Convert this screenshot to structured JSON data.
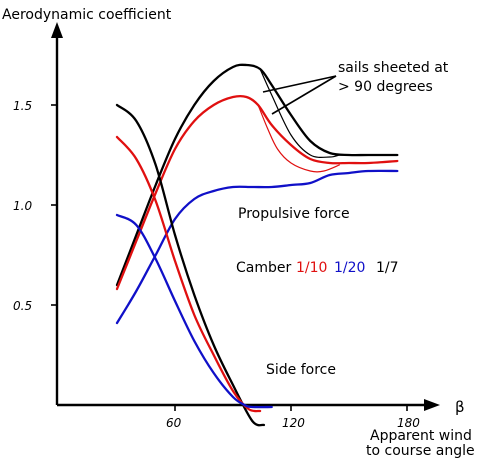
{
  "chart_data": {
    "type": "line",
    "ylabel": "Aerodynamic coefficient",
    "xlabel": "β",
    "xlabel_note": [
      "Apparent wind",
      "to course angle"
    ],
    "x_ticks": [
      60,
      120,
      180
    ],
    "y_ticks": [
      0.5,
      1.0,
      1.5
    ],
    "y_tick_labels": [
      "0.5",
      "1.0",
      "1.5"
    ],
    "xlim": [
      20,
      195
    ],
    "ylim": [
      0,
      2
    ],
    "colors": {
      "camber_1_10": "#e01010",
      "camber_1_20": "#1010c8",
      "camber_1_7": "#000000"
    },
    "annotations": {
      "sails_sheeted": [
        "sails sheeted at",
        "> 90 degrees"
      ],
      "propulsive_force": "Propulsive force",
      "side_force": "Side force",
      "camber_prefix": "Camber",
      "camber_labels": [
        "1/10",
        "1/20",
        "1/7"
      ]
    },
    "series": [
      {
        "name": "1/7",
        "kind": "propulsive",
        "color": "#000000",
        "x": [
          30,
          40,
          50,
          60,
          70,
          80,
          90,
          97,
          104,
          110,
          120,
          130,
          140,
          150,
          160,
          175
        ],
        "y": [
          0.6,
          0.85,
          1.1,
          1.33,
          1.5,
          1.62,
          1.69,
          1.7,
          1.68,
          1.6,
          1.45,
          1.32,
          1.26,
          1.25,
          1.25,
          1.25
        ]
      },
      {
        "name": "1/7",
        "kind": "propulsive_sheeted",
        "color": "#000000",
        "x": [
          104,
          110,
          120,
          130,
          140,
          145
        ],
        "y": [
          1.68,
          1.55,
          1.35,
          1.25,
          1.24,
          1.25
        ]
      },
      {
        "name": "1/10",
        "kind": "propulsive",
        "color": "#e01010",
        "x": [
          30,
          40,
          50,
          60,
          70,
          80,
          90,
          97,
          103,
          110,
          120,
          130,
          140,
          150,
          160,
          175
        ],
        "y": [
          0.58,
          0.82,
          1.06,
          1.28,
          1.42,
          1.5,
          1.54,
          1.54,
          1.5,
          1.4,
          1.3,
          1.23,
          1.21,
          1.21,
          1.21,
          1.22
        ]
      },
      {
        "name": "1/10",
        "kind": "propulsive_sheeted",
        "color": "#e01010",
        "x": [
          103,
          108,
          113,
          120,
          130,
          137,
          145
        ],
        "y": [
          1.5,
          1.38,
          1.28,
          1.21,
          1.17,
          1.17,
          1.2
        ]
      },
      {
        "name": "1/20",
        "kind": "propulsive",
        "color": "#1010c8",
        "x": [
          30,
          40,
          50,
          60,
          70,
          80,
          90,
          100,
          110,
          120,
          130,
          140,
          150,
          160,
          175
        ],
        "y": [
          0.41,
          0.57,
          0.75,
          0.93,
          1.03,
          1.07,
          1.09,
          1.09,
          1.09,
          1.1,
          1.11,
          1.15,
          1.16,
          1.17,
          1.17
        ]
      },
      {
        "name": "1/7",
        "kind": "side",
        "color": "#000000",
        "x": [
          30,
          40,
          50,
          60,
          70,
          80,
          90,
          100,
          106
        ],
        "y": [
          1.5,
          1.42,
          1.2,
          0.85,
          0.55,
          0.3,
          0.1,
          -0.08,
          -0.1
        ]
      },
      {
        "name": "1/10",
        "kind": "side",
        "color": "#e01010",
        "x": [
          30,
          40,
          50,
          60,
          70,
          80,
          90,
          98,
          104
        ],
        "y": [
          1.34,
          1.23,
          1.02,
          0.72,
          0.45,
          0.25,
          0.07,
          -0.02,
          -0.03
        ]
      },
      {
        "name": "1/20",
        "kind": "side",
        "color": "#1010c8",
        "x": [
          30,
          40,
          50,
          60,
          70,
          80,
          90,
          96,
          100,
          110
        ],
        "y": [
          0.95,
          0.9,
          0.73,
          0.52,
          0.32,
          0.16,
          0.04,
          0.0,
          -0.01,
          -0.01
        ]
      }
    ]
  }
}
